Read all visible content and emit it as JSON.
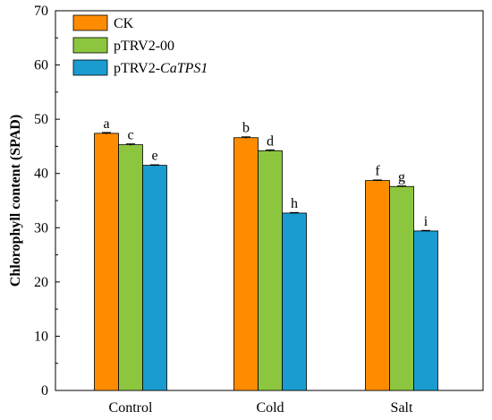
{
  "chart_data": {
    "type": "bar",
    "categories": [
      "Control",
      "Cold",
      "Salt"
    ],
    "ylabel": "Chlorophyll content (SPAD)",
    "ylim": [
      0,
      70
    ],
    "yticks": [
      0,
      10,
      20,
      30,
      40,
      50,
      60,
      70
    ],
    "grid": false,
    "legend_position": "top-left",
    "series": [
      {
        "name": "CK",
        "name_italic": "",
        "color": "#ff8c00",
        "values": [
          47.4,
          46.6,
          38.7
        ],
        "errors": [
          0.15,
          0.15,
          0.1
        ],
        "labels": [
          "a",
          "b",
          "f"
        ]
      },
      {
        "name": "pTRV2-00",
        "name_italic": "",
        "color": "#8cc63f",
        "values": [
          45.3,
          44.2,
          37.6
        ],
        "errors": [
          0.15,
          0.15,
          0.1
        ],
        "labels": [
          "c",
          "d",
          "g"
        ]
      },
      {
        "name": "pTRV2-",
        "name_italic": "CaTPS1",
        "color": "#1a9cd0",
        "values": [
          41.5,
          32.7,
          29.4
        ],
        "errors": [
          0.1,
          0.1,
          0.1
        ],
        "labels": [
          "e",
          "h",
          "i"
        ]
      }
    ]
  }
}
